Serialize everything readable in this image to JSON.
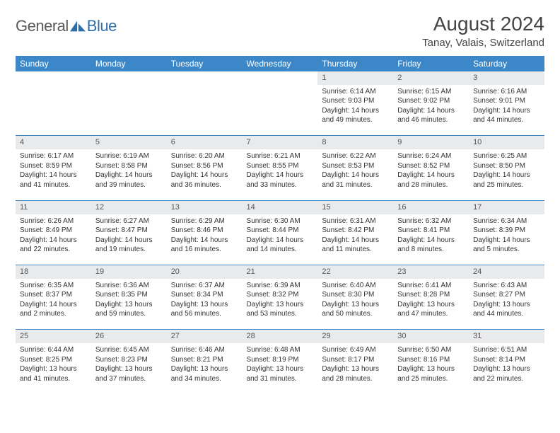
{
  "brand": {
    "part1": "General",
    "part2": "Blue"
  },
  "title": "August 2024",
  "location": "Tanay, Valais, Switzerland",
  "colors": {
    "header_bg": "#3b87c8",
    "header_fg": "#ffffff",
    "daynum_bg": "#e9eaec",
    "row_divider": "#3b87c8",
    "text": "#333333",
    "brand_gray": "#5a5a5a",
    "brand_blue": "#2f6fa8",
    "page_bg": "#ffffff"
  },
  "typography": {
    "title_fontsize": 28,
    "location_fontsize": 15,
    "weekday_fontsize": 12,
    "daynum_fontsize": 11,
    "cell_fontsize": 10
  },
  "weekdays": [
    "Sunday",
    "Monday",
    "Tuesday",
    "Wednesday",
    "Thursday",
    "Friday",
    "Saturday"
  ],
  "weeks": [
    [
      null,
      null,
      null,
      null,
      {
        "n": "1",
        "sr": "Sunrise: 6:14 AM",
        "ss": "Sunset: 9:03 PM",
        "dl": "Daylight: 14 hours and 49 minutes."
      },
      {
        "n": "2",
        "sr": "Sunrise: 6:15 AM",
        "ss": "Sunset: 9:02 PM",
        "dl": "Daylight: 14 hours and 46 minutes."
      },
      {
        "n": "3",
        "sr": "Sunrise: 6:16 AM",
        "ss": "Sunset: 9:01 PM",
        "dl": "Daylight: 14 hours and 44 minutes."
      }
    ],
    [
      {
        "n": "4",
        "sr": "Sunrise: 6:17 AM",
        "ss": "Sunset: 8:59 PM",
        "dl": "Daylight: 14 hours and 41 minutes."
      },
      {
        "n": "5",
        "sr": "Sunrise: 6:19 AM",
        "ss": "Sunset: 8:58 PM",
        "dl": "Daylight: 14 hours and 39 minutes."
      },
      {
        "n": "6",
        "sr": "Sunrise: 6:20 AM",
        "ss": "Sunset: 8:56 PM",
        "dl": "Daylight: 14 hours and 36 minutes."
      },
      {
        "n": "7",
        "sr": "Sunrise: 6:21 AM",
        "ss": "Sunset: 8:55 PM",
        "dl": "Daylight: 14 hours and 33 minutes."
      },
      {
        "n": "8",
        "sr": "Sunrise: 6:22 AM",
        "ss": "Sunset: 8:53 PM",
        "dl": "Daylight: 14 hours and 31 minutes."
      },
      {
        "n": "9",
        "sr": "Sunrise: 6:24 AM",
        "ss": "Sunset: 8:52 PM",
        "dl": "Daylight: 14 hours and 28 minutes."
      },
      {
        "n": "10",
        "sr": "Sunrise: 6:25 AM",
        "ss": "Sunset: 8:50 PM",
        "dl": "Daylight: 14 hours and 25 minutes."
      }
    ],
    [
      {
        "n": "11",
        "sr": "Sunrise: 6:26 AM",
        "ss": "Sunset: 8:49 PM",
        "dl": "Daylight: 14 hours and 22 minutes."
      },
      {
        "n": "12",
        "sr": "Sunrise: 6:27 AM",
        "ss": "Sunset: 8:47 PM",
        "dl": "Daylight: 14 hours and 19 minutes."
      },
      {
        "n": "13",
        "sr": "Sunrise: 6:29 AM",
        "ss": "Sunset: 8:46 PM",
        "dl": "Daylight: 14 hours and 16 minutes."
      },
      {
        "n": "14",
        "sr": "Sunrise: 6:30 AM",
        "ss": "Sunset: 8:44 PM",
        "dl": "Daylight: 14 hours and 14 minutes."
      },
      {
        "n": "15",
        "sr": "Sunrise: 6:31 AM",
        "ss": "Sunset: 8:42 PM",
        "dl": "Daylight: 14 hours and 11 minutes."
      },
      {
        "n": "16",
        "sr": "Sunrise: 6:32 AM",
        "ss": "Sunset: 8:41 PM",
        "dl": "Daylight: 14 hours and 8 minutes."
      },
      {
        "n": "17",
        "sr": "Sunrise: 6:34 AM",
        "ss": "Sunset: 8:39 PM",
        "dl": "Daylight: 14 hours and 5 minutes."
      }
    ],
    [
      {
        "n": "18",
        "sr": "Sunrise: 6:35 AM",
        "ss": "Sunset: 8:37 PM",
        "dl": "Daylight: 14 hours and 2 minutes."
      },
      {
        "n": "19",
        "sr": "Sunrise: 6:36 AM",
        "ss": "Sunset: 8:35 PM",
        "dl": "Daylight: 13 hours and 59 minutes."
      },
      {
        "n": "20",
        "sr": "Sunrise: 6:37 AM",
        "ss": "Sunset: 8:34 PM",
        "dl": "Daylight: 13 hours and 56 minutes."
      },
      {
        "n": "21",
        "sr": "Sunrise: 6:39 AM",
        "ss": "Sunset: 8:32 PM",
        "dl": "Daylight: 13 hours and 53 minutes."
      },
      {
        "n": "22",
        "sr": "Sunrise: 6:40 AM",
        "ss": "Sunset: 8:30 PM",
        "dl": "Daylight: 13 hours and 50 minutes."
      },
      {
        "n": "23",
        "sr": "Sunrise: 6:41 AM",
        "ss": "Sunset: 8:28 PM",
        "dl": "Daylight: 13 hours and 47 minutes."
      },
      {
        "n": "24",
        "sr": "Sunrise: 6:43 AM",
        "ss": "Sunset: 8:27 PM",
        "dl": "Daylight: 13 hours and 44 minutes."
      }
    ],
    [
      {
        "n": "25",
        "sr": "Sunrise: 6:44 AM",
        "ss": "Sunset: 8:25 PM",
        "dl": "Daylight: 13 hours and 41 minutes."
      },
      {
        "n": "26",
        "sr": "Sunrise: 6:45 AM",
        "ss": "Sunset: 8:23 PM",
        "dl": "Daylight: 13 hours and 37 minutes."
      },
      {
        "n": "27",
        "sr": "Sunrise: 6:46 AM",
        "ss": "Sunset: 8:21 PM",
        "dl": "Daylight: 13 hours and 34 minutes."
      },
      {
        "n": "28",
        "sr": "Sunrise: 6:48 AM",
        "ss": "Sunset: 8:19 PM",
        "dl": "Daylight: 13 hours and 31 minutes."
      },
      {
        "n": "29",
        "sr": "Sunrise: 6:49 AM",
        "ss": "Sunset: 8:17 PM",
        "dl": "Daylight: 13 hours and 28 minutes."
      },
      {
        "n": "30",
        "sr": "Sunrise: 6:50 AM",
        "ss": "Sunset: 8:16 PM",
        "dl": "Daylight: 13 hours and 25 minutes."
      },
      {
        "n": "31",
        "sr": "Sunrise: 6:51 AM",
        "ss": "Sunset: 8:14 PM",
        "dl": "Daylight: 13 hours and 22 minutes."
      }
    ]
  ]
}
